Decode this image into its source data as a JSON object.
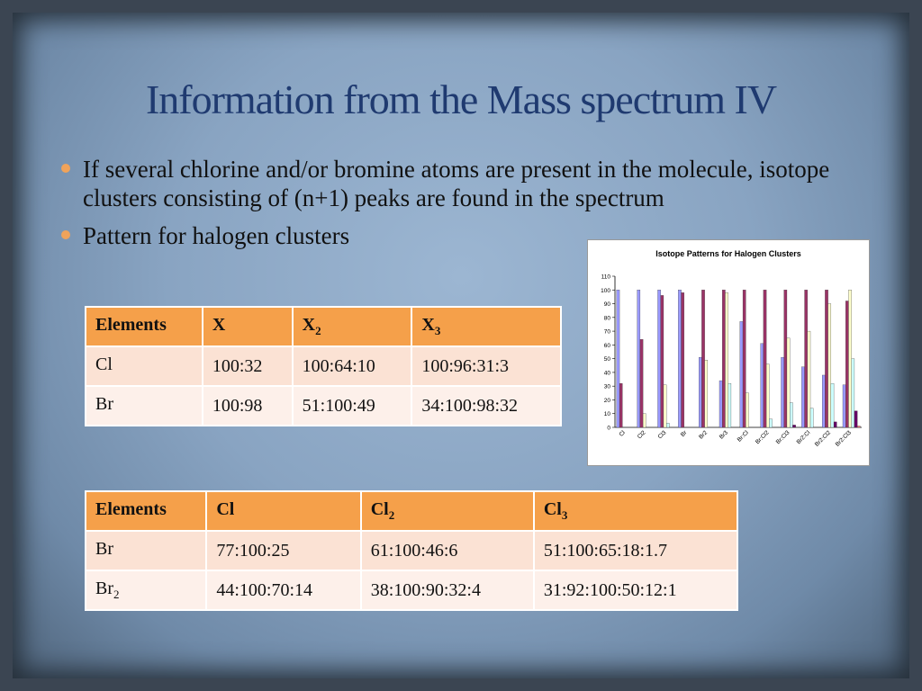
{
  "slide": {
    "title": "Information from the Mass spectrum IV",
    "bullets": [
      "If several chlorine and/or bromine atoms are present in the molecule, isotope clusters consisting of (n+1) peaks are found in the spectrum",
      "Pattern for halogen clusters"
    ]
  },
  "table1": {
    "headers": [
      {
        "text": "Elements",
        "sub": ""
      },
      {
        "text": "X",
        "sub": ""
      },
      {
        "text": "X",
        "sub": "2"
      },
      {
        "text": "X",
        "sub": "3"
      }
    ],
    "rows": [
      {
        "element": "Cl",
        "element_sub": "",
        "cells": [
          "100:32",
          "100:64:10",
          "100:96:31:3"
        ]
      },
      {
        "element": "Br",
        "element_sub": "",
        "cells": [
          "100:98",
          "51:100:49",
          "34:100:98:32"
        ]
      }
    ]
  },
  "table2": {
    "headers": [
      {
        "text": "Elements",
        "sub": ""
      },
      {
        "text": "Cl",
        "sub": ""
      },
      {
        "text": "Cl",
        "sub": "2"
      },
      {
        "text": "Cl",
        "sub": "3"
      }
    ],
    "rows": [
      {
        "element": "Br",
        "element_sub": "",
        "cells": [
          "77:100:25",
          "61:100:46:6",
          "51:100:65:18:1.7"
        ]
      },
      {
        "element": "Br",
        "element_sub": "2",
        "cells": [
          "44:100:70:14",
          "38:100:90:32:4",
          "31:92:100:50:12:1"
        ]
      }
    ]
  },
  "colors": {
    "title": "#1f3a70",
    "bullet_dot": "#f0a35a",
    "table_header": "#f5a04a",
    "table_row": "#fbe2d4"
  },
  "chart_data": {
    "type": "bar",
    "title": "Isotope Patterns for Halogen Clusters",
    "categories": [
      "Cl",
      "Cl2",
      "Cl3",
      "Br",
      "Br2",
      "Br3",
      "Br:Cl",
      "Br:Cl2",
      "Br:Cl3",
      "Br2:Cl",
      "Br2:Cl2",
      "Br2:Cl3"
    ],
    "series": [
      {
        "color": "#9999ff",
        "values": [
          100,
          100,
          100,
          100,
          51,
          34,
          77,
          61,
          51,
          44,
          38,
          31
        ]
      },
      {
        "color": "#993366",
        "values": [
          32,
          64,
          96,
          98,
          100,
          100,
          100,
          100,
          100,
          100,
          100,
          92
        ]
      },
      {
        "color": "#ffffcc",
        "values": [
          0,
          10,
          31,
          0,
          49,
          98,
          25,
          46,
          65,
          70,
          90,
          100
        ]
      },
      {
        "color": "#ccffff",
        "values": [
          0,
          0,
          3,
          0,
          0,
          32,
          0,
          6,
          18,
          14,
          32,
          50
        ]
      },
      {
        "color": "#660066",
        "values": [
          0,
          0,
          0,
          0,
          0,
          0,
          0,
          0,
          1.7,
          0,
          4,
          12
        ]
      },
      {
        "color": "#ff8080",
        "values": [
          0,
          0,
          0,
          0,
          0,
          0,
          0,
          0,
          0,
          0,
          0,
          1
        ]
      }
    ],
    "yticks": [
      "0",
      "10",
      "20",
      "30",
      "40",
      "50",
      "60",
      "70",
      "80",
      "90",
      "100",
      "110"
    ],
    "ylim": [
      0,
      110
    ],
    "grid": false,
    "legend": "none"
  }
}
